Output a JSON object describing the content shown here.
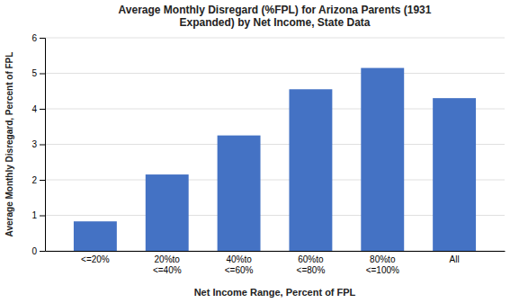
{
  "chart_data": {
    "type": "bar",
    "title": "Average Monthly Disregard (%FPL) for Arizona Parents (1931\nExpanded) by Net Income, State Data",
    "xlabel": "Net Income Range, Percent of FPL",
    "ylabel": "Average Monthly Disregard, Percent of FPL",
    "categories": [
      "<=20%",
      "20%to\n<=40%",
      "40%to\n<=60%",
      "60%to\n<=80%",
      "80%to\n<=100%",
      "All"
    ],
    "values": [
      0.83,
      2.15,
      3.25,
      4.55,
      5.15,
      4.3
    ],
    "color": "#4472C4",
    "ylim": [
      0,
      6
    ],
    "yticks": [
      0,
      1,
      2,
      3,
      4,
      5,
      6
    ],
    "grid": true
  }
}
